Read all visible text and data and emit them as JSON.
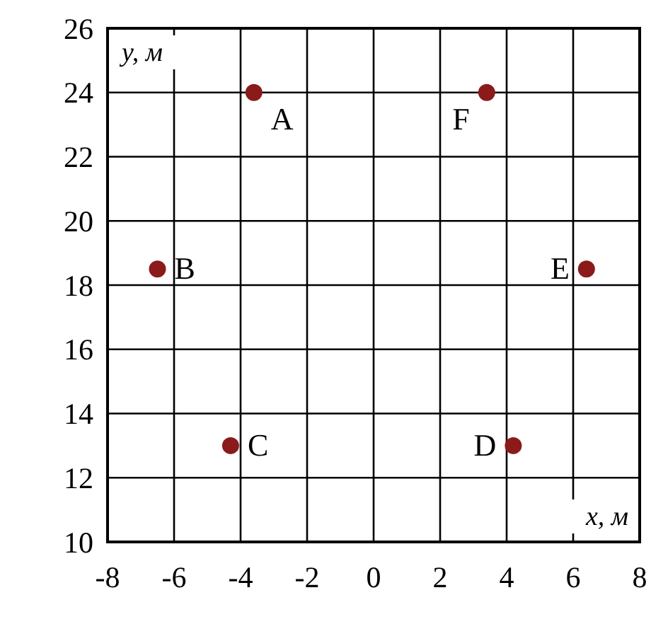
{
  "chart_data": {
    "type": "scatter",
    "xlabel": "x, м",
    "ylabel": "y, м",
    "x": [
      -3.6,
      3.4,
      -6.5,
      6.4,
      -4.3,
      4.2
    ],
    "values": [
      24,
      24,
      18.5,
      18.5,
      13,
      13
    ],
    "color": "#8b1a1a",
    "marker": "circle",
    "xlim": [
      -8,
      8
    ],
    "xticks": [
      -8,
      -6,
      -4,
      -2,
      0,
      2,
      4,
      6,
      8
    ],
    "ylim": [
      10,
      26
    ],
    "yticks": [
      10,
      12,
      14,
      16,
      18,
      20,
      22,
      24,
      26
    ],
    "grid": true,
    "annotations": [
      {
        "text": "A",
        "x": -3.6,
        "y": 24
      },
      {
        "text": "F",
        "x": 3.4,
        "y": 24
      },
      {
        "text": "B",
        "x": -6.5,
        "y": 18.5
      },
      {
        "text": "E",
        "x": 6.4,
        "y": 18.5
      },
      {
        "text": "C",
        "x": -4.3,
        "y": 13
      },
      {
        "text": "D",
        "x": 4.2,
        "y": 13
      }
    ]
  }
}
